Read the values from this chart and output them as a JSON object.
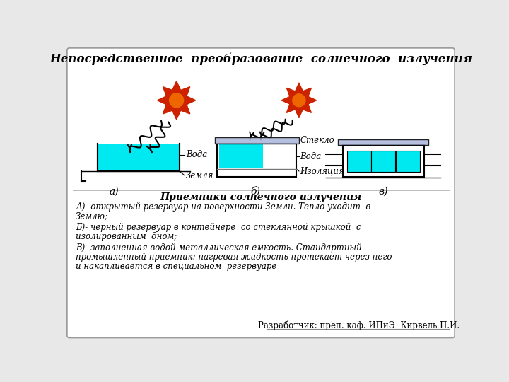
{
  "title": "Непосредственное  преобразование  солнечного  излучения",
  "subtitle": "Приемники солнечного излучения",
  "label_a": "а)",
  "label_b": "б)",
  "label_c": "в)",
  "text_voda_a": "Вода",
  "text_zemlya": "Земля",
  "text_steklo": "Стекло",
  "text_voda_b": "Вода",
  "text_izolyaciya": "Изоляция",
  "desc1": "А)- открытый резервуар на поверхности Земли. Тепло уходит  в",
  "desc2": "Землю;",
  "desc3": "Б)- черный резервуар в контейнере  со стеклянной крышкой  с",
  "desc4": "изолированным  дном;",
  "desc5": "В)- заполненная водой металлическая емкость. Стандартный",
  "desc6": "промышленный приемник: нагревая жидкость протекает через него",
  "desc7": "и накапливается в специальном  резервуаре",
  "footer": "Разработчик: преп. каф. ИПиЭ  Кирвель П.И.",
  "bg_color": "#e8e8e8",
  "box_bg": "#ffffff",
  "cyan_color": "#00e8f0",
  "glass_color": "#aab4d8",
  "sun_outer_color": "#cc2200",
  "sun_inner_color": "#ee4400",
  "sun_center_color": "#ee6600",
  "line_color": "#000000"
}
